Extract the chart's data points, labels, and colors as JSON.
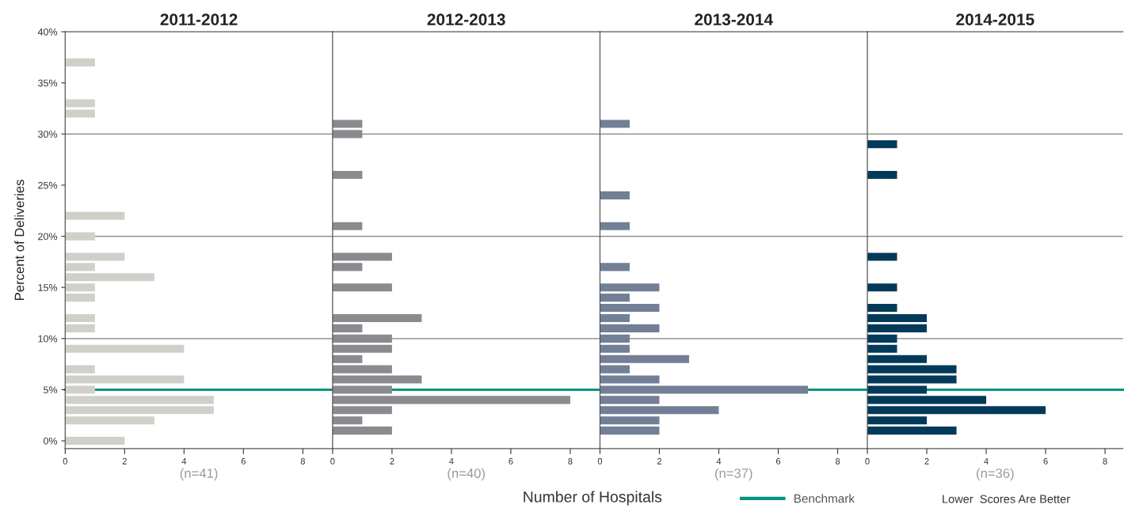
{
  "chart_data": [
    {
      "type": "bar",
      "orientation": "horizontal",
      "title": "2011-2012",
      "xlabel": "(n=41)",
      "ylabel": "Percent of Deliveries",
      "legend": "bottom",
      "annotations": [
        "Number of Hospitals",
        "Lower  Scores Are Better"
      ],
      "x": [
        37,
        33,
        32,
        22,
        20,
        18,
        17,
        16,
        15,
        14,
        12,
        11,
        9,
        7,
        6,
        5,
        4,
        3,
        2,
        0
      ],
      "values": [
        1,
        1,
        1,
        2,
        1,
        2,
        1,
        3,
        1,
        1,
        1,
        1,
        4,
        1,
        4,
        1,
        5,
        5,
        3,
        2
      ],
      "color": "#d0cfca",
      "xlim": [
        0,
        9
      ],
      "xticks": [
        0,
        2,
        4,
        6,
        8
      ],
      "ylim": [
        -0.75,
        40
      ],
      "yticks": [
        {
          "value": 0,
          "label": "0%"
        },
        {
          "value": 5,
          "label": "5%"
        },
        {
          "value": 10,
          "label": "10%"
        },
        {
          "value": 15,
          "label": "15%"
        },
        {
          "value": 20,
          "label": "20%"
        },
        {
          "value": 25,
          "label": "25%"
        },
        {
          "value": 30,
          "label": "30%"
        },
        {
          "value": 35,
          "label": "35%"
        },
        {
          "value": 40,
          "label": "40%"
        }
      ],
      "ref_lines": [
        {
          "axis": "y",
          "value": 10,
          "color": "#808080"
        },
        {
          "axis": "y",
          "value": 20,
          "color": "#808080"
        },
        {
          "axis": "y",
          "value": 30,
          "color": "#808080"
        },
        {
          "axis": "y",
          "value": 5,
          "label": "Benchmark",
          "color": "#00957f"
        }
      ]
    },
    {
      "type": "bar",
      "orientation": "horizontal",
      "title": "2012-2013",
      "xlabel": "(n=40)",
      "tick_labels": "x",
      "x": [
        31,
        30,
        26,
        21,
        18,
        17,
        15,
        12,
        11,
        10,
        9,
        8,
        7,
        6,
        5,
        4,
        3,
        2,
        1
      ],
      "values": [
        1,
        1,
        1,
        1,
        2,
        1,
        2,
        3,
        1,
        2,
        2,
        1,
        2,
        3,
        2,
        8,
        2,
        1,
        2
      ],
      "color": "#8a8a8f",
      "xlim": [
        0,
        9
      ],
      "xticks": [
        0,
        2,
        4,
        6,
        8
      ],
      "ylim": [
        -0.75,
        40
      ],
      "ref_lines": [
        {
          "axis": "y",
          "value": 10,
          "color": "#808080"
        },
        {
          "axis": "y",
          "value": 20,
          "color": "#808080"
        },
        {
          "axis": "y",
          "value": 30,
          "color": "#808080"
        },
        {
          "axis": "y",
          "value": 5,
          "color": "#00957f"
        }
      ]
    },
    {
      "type": "bar",
      "orientation": "horizontal",
      "title": "2013-2014",
      "xlabel": "(n=37)",
      "tick_labels": "x",
      "x": [
        31,
        24,
        21,
        17,
        15,
        14,
        13,
        12,
        11,
        10,
        9,
        8,
        7,
        6,
        5,
        4,
        3,
        2,
        1
      ],
      "values": [
        1,
        1,
        1,
        1,
        2,
        1,
        2,
        1,
        2,
        1,
        1,
        3,
        1,
        2,
        7,
        2,
        4,
        2,
        2
      ],
      "color": "#727f96",
      "xlim": [
        0,
        9
      ],
      "xticks": [
        0,
        2,
        4,
        6,
        8
      ],
      "ylim": [
        -0.75,
        40
      ],
      "ref_lines": [
        {
          "axis": "y",
          "value": 10,
          "color": "#808080"
        },
        {
          "axis": "y",
          "value": 20,
          "color": "#808080"
        },
        {
          "axis": "y",
          "value": 30,
          "color": "#808080"
        },
        {
          "axis": "y",
          "value": 5,
          "color": "#00957f"
        }
      ]
    },
    {
      "type": "bar",
      "orientation": "horizontal",
      "title": "2014-2015",
      "xlabel": "(n=36)",
      "tick_labels": "x",
      "x": [
        29,
        26,
        18,
        15,
        13,
        12,
        11,
        10,
        9,
        8,
        7,
        6,
        5,
        4,
        3,
        2,
        1
      ],
      "values": [
        1,
        1,
        1,
        1,
        1,
        2,
        2,
        1,
        1,
        2,
        3,
        3,
        2,
        4,
        6,
        2,
        3
      ],
      "color": "#033a5a",
      "xlim": [
        0,
        8.6
      ],
      "xticks": [
        0,
        2,
        4,
        6,
        8
      ],
      "ylim": [
        -0.75,
        40
      ],
      "ref_lines": [
        {
          "axis": "y",
          "value": 10,
          "color": "#808080"
        },
        {
          "axis": "y",
          "value": 20,
          "color": "#808080"
        },
        {
          "axis": "y",
          "value": 30,
          "color": "#808080"
        },
        {
          "axis": "y",
          "value": 5,
          "color": "#00957f"
        }
      ]
    }
  ]
}
